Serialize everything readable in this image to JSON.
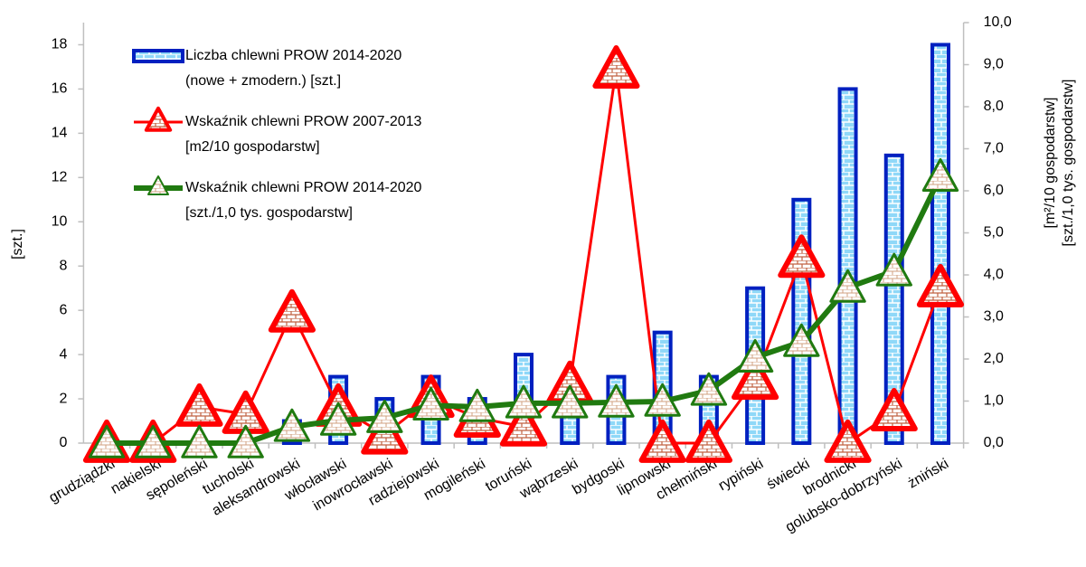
{
  "chart_data": {
    "type": "bar-line",
    "categories": [
      "grudziądzki",
      "nakielski",
      "sępoleński",
      "tucholski",
      "aleksandrowski",
      "włocławski",
      "inowrocławski",
      "radziejowski",
      "mogileński",
      "toruński",
      "wąbrzeski",
      "bydgoski",
      "lipnowski",
      "chełmiński",
      "rypiński",
      "świecki",
      "brodnicki",
      "golubsko-dobrzyński",
      "żniński"
    ],
    "series": [
      {
        "name": [
          "Liczba chlewni PROW 2014-2020",
          "(nowe + zmodern.) [szt.]"
        ],
        "type": "bar",
        "color": "#0020c0",
        "axis": "y",
        "values": [
          0,
          0,
          0,
          0,
          1,
          3,
          2,
          3,
          2,
          4,
          2,
          3,
          5,
          3,
          7,
          11,
          16,
          13,
          18
        ]
      },
      {
        "name": [
          "Wskaźnik chlewni PROW 2007-2013",
          "[m2/10 gospodarstw]"
        ],
        "type": "line",
        "color": "#ff0000",
        "axis": "y2",
        "values": [
          0,
          0,
          0.86,
          0.69,
          3.1,
          0.86,
          0.2,
          1.07,
          0.6,
          0.39,
          1.4,
          8.9,
          0,
          0,
          1.5,
          4.4,
          0,
          0.75,
          3.7
        ]
      },
      {
        "name": [
          "Wskaźnik chlewni PROW 2014-2020",
          "[szt./1,0 tys. gospodarstw]"
        ],
        "type": "line",
        "color": "#207a10",
        "axis": "y2",
        "values": [
          0,
          0,
          0,
          0,
          0.39,
          0.54,
          0.6,
          0.9,
          0.86,
          0.95,
          0.95,
          0.97,
          0.99,
          1.25,
          2.04,
          2.41,
          3.7,
          4.09,
          6.34
        ]
      }
    ],
    "y_label": "[szt.]",
    "y2_label": [
      "[m²/10 gospodarstw]",
      "[szt./1,0 tys. gospodarstw]"
    ],
    "ylim": [
      0,
      19
    ],
    "yticks": [
      0,
      2,
      4,
      6,
      8,
      10,
      12,
      14,
      16,
      18
    ],
    "y2lim": [
      0,
      10
    ],
    "y2ticks": [
      {
        "value": 0,
        "label": "0,0"
      },
      {
        "value": 1,
        "label": "1,0"
      },
      {
        "value": 2,
        "label": "2,0"
      },
      {
        "value": 3,
        "label": "3,0"
      },
      {
        "value": 4,
        "label": "4,0"
      },
      {
        "value": 5,
        "label": "5,0"
      },
      {
        "value": 6,
        "label": "6,0"
      },
      {
        "value": 7,
        "label": "7,0"
      },
      {
        "value": 8,
        "label": "8,0"
      },
      {
        "value": 9,
        "label": "9,0"
      },
      {
        "value": 10,
        "label": "10,0"
      }
    ],
    "grid": false,
    "legend": "upper left"
  }
}
